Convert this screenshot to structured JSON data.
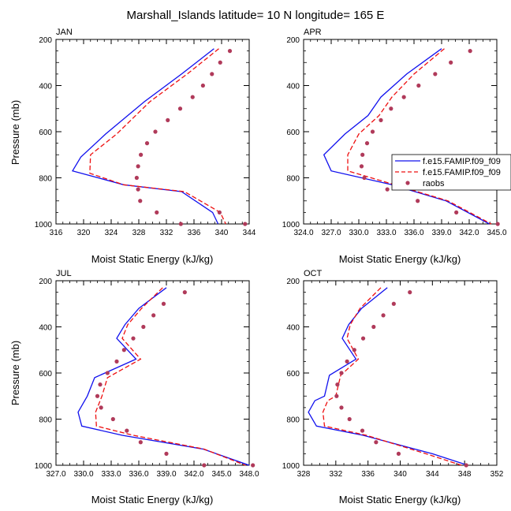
{
  "figure_title": "Marshall_Islands  latitude= 10 N longitude= 165 E",
  "legend": {
    "entries": [
      "f.e15.FAMIP.f09_f09",
      "f.e15.FAMIP.f09_f09",
      "raobs"
    ]
  },
  "colors": {
    "series1": "#1010ee",
    "series2": "#ee1010",
    "raobs": "#b03a5a"
  },
  "chart_data": [
    {
      "type": "line",
      "title": "JAN",
      "xlabel": "Moist Static Energy (kJ/kg)",
      "ylabel": "Pressure (mb)",
      "xlim": [
        316,
        344
      ],
      "ylim": [
        1000,
        200
      ],
      "x_ticks": [
        316,
        320,
        324,
        328,
        332,
        336,
        340,
        344
      ],
      "x_tick_labels": [
        "316",
        "320",
        "324",
        "328",
        "332",
        "336",
        "340",
        "344"
      ],
      "y_ticks": [
        200,
        400,
        600,
        800,
        1000
      ],
      "y_tick_labels": [
        "200",
        "400",
        "600",
        "800",
        "1000"
      ],
      "series": [
        {
          "name": "f.e15.FAMIP.f09_f09",
          "style": "solid",
          "x": [
            338.9,
            334.2,
            328.8,
            323.2,
            319.6,
            318.4,
            325.8,
            334.2,
            338.7,
            339.5
          ],
          "y": [
            240,
            350,
            470,
            610,
            710,
            770,
            830,
            860,
            950,
            1000
          ]
        },
        {
          "name": "f.e15.FAMIP.f09_f09",
          "style": "dashed",
          "x": [
            339.6,
            335.0,
            329.6,
            324.8,
            321.0,
            320.9,
            325.8,
            334.6,
            339.8,
            340.6
          ],
          "y": [
            240,
            350,
            470,
            610,
            700,
            780,
            830,
            860,
            950,
            1000
          ]
        },
        {
          "name": "raobs",
          "style": "markers",
          "x": [
            341.2,
            339.8,
            338.6,
            337.3,
            335.8,
            334.0,
            332.2,
            330.4,
            329.2,
            328.3,
            327.9,
            327.7,
            327.9,
            328.2,
            330.6,
            334.1,
            339.7,
            343.4
          ],
          "y": [
            250,
            300,
            350,
            400,
            450,
            500,
            550,
            600,
            650,
            700,
            750,
            800,
            850,
            900,
            950,
            1000,
            950,
            1000
          ]
        }
      ]
    },
    {
      "type": "line",
      "title": "APR",
      "xlabel": "Moist Static Energy (kJ/kg)",
      "ylabel": "Pressure (mb)",
      "xlim": [
        324,
        345
      ],
      "ylim": [
        1000,
        200
      ],
      "x_ticks": [
        324,
        327,
        330,
        333,
        336,
        339,
        342,
        345
      ],
      "x_tick_labels": [
        "324.0",
        "327.0",
        "330.0",
        "333.0",
        "336.0",
        "339.0",
        "342.0",
        "345.0"
      ],
      "y_ticks": [
        200,
        400,
        600,
        800,
        1000
      ],
      "y_tick_labels": [
        "200",
        "400",
        "600",
        "800",
        "1000"
      ],
      "series": [
        {
          "name": "f.e15.FAMIP.f09_f09",
          "style": "solid",
          "x": [
            339.0,
            335.2,
            332.4,
            331.0,
            328.5,
            326.2,
            327.0,
            333.6,
            339.5,
            344.2
          ],
          "y": [
            240,
            350,
            450,
            530,
            610,
            700,
            770,
            830,
            900,
            1000
          ]
        },
        {
          "name": "f.e15.FAMIP.f09_f09",
          "style": "dashed",
          "x": [
            339.3,
            336.0,
            333.6,
            332.2,
            330.0,
            328.8,
            328.8,
            333.9,
            339.7,
            344.4
          ],
          "y": [
            240,
            350,
            450,
            530,
            610,
            700,
            770,
            830,
            900,
            1000
          ]
        },
        {
          "name": "raobs",
          "style": "markers",
          "x": [
            342.1,
            340.0,
            338.3,
            336.5,
            334.9,
            333.5,
            332.4,
            331.5,
            330.9,
            330.4,
            330.3,
            330.6,
            333.1,
            336.4,
            340.6,
            345.1
          ],
          "y": [
            250,
            300,
            350,
            400,
            450,
            500,
            550,
            600,
            650,
            700,
            750,
            800,
            850,
            900,
            950,
            1000
          ]
        }
      ]
    },
    {
      "type": "line",
      "title": "JUL",
      "xlabel": "Moist Static Energy (kJ/kg)",
      "ylabel": "Pressure (mb)",
      "xlim": [
        327,
        348
      ],
      "ylim": [
        1000,
        200
      ],
      "x_ticks": [
        327,
        330,
        333,
        336,
        339,
        342,
        345,
        348
      ],
      "x_tick_labels": [
        "327.0",
        "330.0",
        "333.0",
        "336.0",
        "339.0",
        "342.0",
        "345.0",
        "348.0"
      ],
      "y_ticks": [
        200,
        400,
        600,
        800,
        1000
      ],
      "y_tick_labels": [
        "200",
        "400",
        "600",
        "800",
        "1000"
      ],
      "series": [
        {
          "name": "f.e15.FAMIP.f09_f09",
          "style": "solid",
          "x": [
            339.0,
            336.0,
            334.5,
            333.6,
            335.7,
            331.2,
            330.4,
            329.4,
            329.8,
            334.2,
            343.0,
            348.0
          ],
          "y": [
            230,
            320,
            390,
            450,
            540,
            620,
            700,
            770,
            830,
            870,
            930,
            1000
          ]
        },
        {
          "name": "f.e15.FAMIP.f09_f09",
          "style": "dashed",
          "x": [
            338.6,
            336.3,
            334.8,
            334.2,
            336.2,
            332.6,
            332.0,
            331.3,
            331.4,
            335.4,
            343.1,
            347.6
          ],
          "y": [
            230,
            320,
            390,
            450,
            540,
            620,
            700,
            770,
            830,
            870,
            930,
            1000
          ]
        },
        {
          "name": "raobs",
          "style": "markers",
          "x": [
            341.0,
            338.7,
            337.6,
            336.5,
            335.4,
            334.4,
            333.6,
            332.6,
            331.8,
            331.5,
            331.9,
            333.2,
            334.7,
            336.2,
            339.0,
            343.1,
            348.4
          ],
          "y": [
            250,
            300,
            350,
            400,
            450,
            500,
            550,
            600,
            650,
            700,
            750,
            800,
            850,
            900,
            950,
            1000,
            1000
          ]
        }
      ]
    },
    {
      "type": "line",
      "title": "OCT",
      "xlabel": "Moist Static Energy (kJ/kg)",
      "ylabel": "Pressure (mb)",
      "xlim": [
        328,
        352
      ],
      "ylim": [
        1000,
        200
      ],
      "x_ticks": [
        328,
        332,
        336,
        340,
        344,
        348,
        352
      ],
      "x_tick_labels": [
        "328",
        "332",
        "336",
        "340",
        "344",
        "348",
        "352"
      ],
      "y_ticks": [
        200,
        400,
        600,
        800,
        1000
      ],
      "y_tick_labels": [
        "200",
        "400",
        "600",
        "800",
        "1000"
      ],
      "series": [
        {
          "name": "f.e15.FAMIP.f09_f09",
          "style": "solid",
          "x": [
            338.4,
            335.2,
            333.6,
            332.8,
            334.5,
            331.2,
            330.6,
            329.4,
            328.6,
            329.6,
            335.4,
            344.0,
            348.4
          ],
          "y": [
            230,
            320,
            390,
            450,
            540,
            610,
            700,
            720,
            770,
            830,
            870,
            950,
            1000
          ]
        },
        {
          "name": "f.e15.FAMIP.f09_f09",
          "style": "dashed",
          "x": [
            337.6,
            335.0,
            333.8,
            333.4,
            334.8,
            332.6,
            332.0,
            331.0,
            330.4,
            330.6,
            335.8,
            343.2,
            347.6
          ],
          "y": [
            230,
            320,
            390,
            450,
            540,
            610,
            700,
            720,
            770,
            830,
            870,
            950,
            1000
          ]
        },
        {
          "name": "raobs",
          "style": "markers",
          "x": [
            341.2,
            339.2,
            337.9,
            336.7,
            335.4,
            334.3,
            333.4,
            332.7,
            332.2,
            332.1,
            332.7,
            333.7,
            335.3,
            337.0,
            339.8,
            348.2
          ],
          "y": [
            250,
            300,
            350,
            400,
            450,
            500,
            550,
            600,
            650,
            700,
            750,
            800,
            850,
            900,
            950,
            1000
          ]
        }
      ]
    }
  ]
}
